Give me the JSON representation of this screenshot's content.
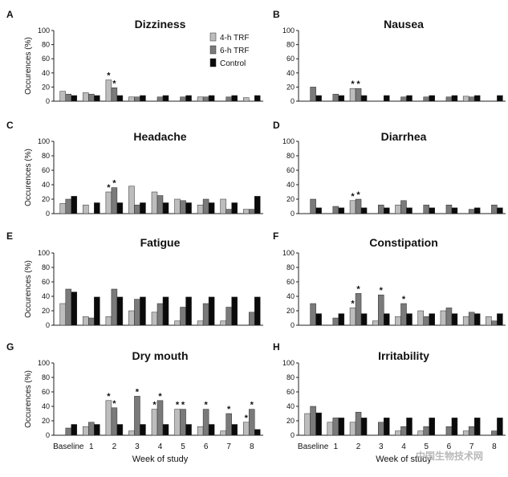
{
  "watermark": "中国生物技术网",
  "legend": [
    {
      "name": "4-h TRF",
      "color": "#bdbdbd"
    },
    {
      "name": "6-h TRF",
      "color": "#7a7a7a"
    },
    {
      "name": "Control",
      "color": "#0a0a0a"
    }
  ],
  "chart_data": [
    {
      "letter": "A",
      "title": "Dizziness",
      "type": "bar",
      "ylabel": "Occurences (%)",
      "ylim": [
        0,
        100
      ],
      "yticks": [
        0,
        20,
        40,
        60,
        80,
        100
      ],
      "categories": [
        "Baseline",
        "1",
        "2",
        "3",
        "4",
        "5",
        "6",
        "7",
        "8"
      ],
      "xlabel": "",
      "show_x_labels": false,
      "show_legend": true,
      "series": [
        {
          "name": "4-h TRF",
          "values": [
            14,
            12,
            30,
            6,
            0,
            0,
            6,
            0,
            5
          ],
          "stars": [
            false,
            false,
            true,
            false,
            false,
            false,
            false,
            false,
            false
          ]
        },
        {
          "name": "6-h TRF",
          "values": [
            10,
            10,
            19,
            6,
            6,
            6,
            6,
            6,
            0
          ],
          "stars": [
            false,
            false,
            true,
            false,
            false,
            false,
            false,
            false,
            false
          ]
        },
        {
          "name": "Control",
          "values": [
            8,
            8,
            8,
            8,
            8,
            8,
            8,
            8,
            8
          ],
          "stars": [
            false,
            false,
            false,
            false,
            false,
            false,
            false,
            false,
            false
          ]
        }
      ]
    },
    {
      "letter": "B",
      "title": "Nausea",
      "type": "bar",
      "ylabel": "",
      "ylim": [
        0,
        100
      ],
      "yticks": [
        0,
        20,
        40,
        60,
        80,
        100
      ],
      "categories": [
        "Baseline",
        "1",
        "2",
        "3",
        "4",
        "5",
        "6",
        "7",
        "8"
      ],
      "xlabel": "",
      "show_x_labels": false,
      "show_legend": false,
      "series": [
        {
          "name": "4-h TRF",
          "values": [
            0,
            0,
            18,
            0,
            0,
            0,
            0,
            7,
            0
          ],
          "stars": [
            false,
            false,
            true,
            false,
            false,
            false,
            false,
            false,
            false
          ]
        },
        {
          "name": "6-h TRF",
          "values": [
            20,
            10,
            18,
            0,
            6,
            6,
            6,
            6,
            0
          ],
          "stars": [
            false,
            false,
            true,
            false,
            false,
            false,
            false,
            false,
            false
          ]
        },
        {
          "name": "Control",
          "values": [
            8,
            8,
            8,
            8,
            8,
            8,
            8,
            8,
            8
          ],
          "stars": [
            false,
            false,
            false,
            false,
            false,
            false,
            false,
            false,
            false
          ]
        }
      ]
    },
    {
      "letter": "C",
      "title": "Headache",
      "type": "bar",
      "ylabel": "Occurences (%)",
      "ylim": [
        0,
        100
      ],
      "yticks": [
        0,
        20,
        40,
        60,
        80,
        100
      ],
      "categories": [
        "Baseline",
        "1",
        "2",
        "3",
        "4",
        "5",
        "6",
        "7",
        "8"
      ],
      "xlabel": "",
      "show_x_labels": false,
      "show_legend": false,
      "series": [
        {
          "name": "4-h TRF",
          "values": [
            14,
            12,
            30,
            38,
            30,
            20,
            12,
            20,
            6
          ],
          "stars": [
            false,
            false,
            true,
            false,
            false,
            false,
            false,
            false,
            false
          ]
        },
        {
          "name": "6-h TRF",
          "values": [
            20,
            0,
            36,
            12,
            25,
            18,
            20,
            6,
            6
          ],
          "stars": [
            false,
            false,
            true,
            false,
            false,
            false,
            false,
            false,
            false
          ]
        },
        {
          "name": "Control",
          "values": [
            24,
            15,
            15,
            15,
            15,
            15,
            15,
            15,
            24
          ],
          "stars": [
            false,
            false,
            false,
            false,
            false,
            false,
            false,
            false,
            false
          ]
        }
      ]
    },
    {
      "letter": "D",
      "title": "Diarrhea",
      "type": "bar",
      "ylabel": "",
      "ylim": [
        0,
        100
      ],
      "yticks": [
        0,
        20,
        40,
        60,
        80,
        100
      ],
      "categories": [
        "Baseline",
        "1",
        "2",
        "3",
        "4",
        "5",
        "6",
        "7",
        "8"
      ],
      "xlabel": "",
      "show_x_labels": false,
      "show_legend": false,
      "series": [
        {
          "name": "4-h TRF",
          "values": [
            0,
            0,
            18,
            0,
            12,
            0,
            0,
            0,
            0
          ],
          "stars": [
            false,
            false,
            true,
            false,
            false,
            false,
            false,
            false,
            false
          ]
        },
        {
          "name": "6-h TRF",
          "values": [
            20,
            10,
            20,
            12,
            18,
            12,
            12,
            6,
            12
          ],
          "stars": [
            false,
            false,
            true,
            false,
            false,
            false,
            false,
            false,
            false
          ]
        },
        {
          "name": "Control",
          "values": [
            8,
            8,
            8,
            8,
            8,
            8,
            8,
            8,
            8
          ],
          "stars": [
            false,
            false,
            false,
            false,
            false,
            false,
            false,
            false,
            false
          ]
        }
      ]
    },
    {
      "letter": "E",
      "title": "Fatigue",
      "type": "bar",
      "ylabel": "Occurences (%)",
      "ylim": [
        0,
        100
      ],
      "yticks": [
        0,
        20,
        40,
        60,
        80,
        100
      ],
      "categories": [
        "Baseline",
        "1",
        "2",
        "3",
        "4",
        "5",
        "6",
        "7",
        "8"
      ],
      "xlabel": "",
      "show_x_labels": false,
      "show_legend": false,
      "series": [
        {
          "name": "4-h TRF",
          "values": [
            30,
            12,
            12,
            20,
            18,
            6,
            6,
            6,
            0
          ],
          "stars": [
            false,
            false,
            false,
            false,
            false,
            false,
            false,
            false,
            false
          ]
        },
        {
          "name": "6-h TRF",
          "values": [
            50,
            10,
            50,
            36,
            30,
            25,
            30,
            25,
            18
          ],
          "stars": [
            false,
            false,
            false,
            false,
            false,
            false,
            false,
            false,
            false
          ]
        },
        {
          "name": "Control",
          "values": [
            46,
            39,
            39,
            39,
            39,
            39,
            39,
            39,
            39
          ],
          "stars": [
            false,
            false,
            false,
            false,
            false,
            false,
            false,
            false,
            false
          ]
        }
      ]
    },
    {
      "letter": "F",
      "title": "Constipation",
      "type": "bar",
      "ylabel": "",
      "ylim": [
        0,
        100
      ],
      "yticks": [
        0,
        20,
        40,
        60,
        80,
        100
      ],
      "categories": [
        "Baseline",
        "1",
        "2",
        "3",
        "4",
        "5",
        "6",
        "7",
        "8"
      ],
      "xlabel": "",
      "show_x_labels": false,
      "show_legend": false,
      "series": [
        {
          "name": "4-h TRF",
          "values": [
            0,
            0,
            24,
            6,
            12,
            20,
            20,
            12,
            12
          ],
          "stars": [
            false,
            false,
            true,
            false,
            false,
            false,
            false,
            false,
            false
          ]
        },
        {
          "name": "6-h TRF",
          "values": [
            30,
            10,
            44,
            42,
            30,
            12,
            24,
            18,
            6
          ],
          "stars": [
            false,
            false,
            true,
            true,
            true,
            false,
            false,
            false,
            false
          ]
        },
        {
          "name": "Control",
          "values": [
            16,
            16,
            16,
            16,
            16,
            16,
            16,
            16,
            16
          ],
          "stars": [
            false,
            false,
            false,
            false,
            false,
            false,
            false,
            false,
            false
          ]
        }
      ]
    },
    {
      "letter": "G",
      "title": "Dry mouth",
      "type": "bar",
      "ylabel": "Occurences (%)",
      "ylim": [
        0,
        100
      ],
      "yticks": [
        0,
        20,
        40,
        60,
        80,
        100
      ],
      "categories": [
        "Baseline",
        "1",
        "2",
        "3",
        "4",
        "5",
        "6",
        "7",
        "8"
      ],
      "xlabel": "Week of study",
      "show_x_labels": true,
      "show_legend": false,
      "series": [
        {
          "name": "4-h TRF",
          "values": [
            0,
            12,
            48,
            6,
            36,
            36,
            12,
            6,
            18
          ],
          "stars": [
            false,
            false,
            true,
            false,
            true,
            true,
            false,
            false,
            true
          ]
        },
        {
          "name": "6-h TRF",
          "values": [
            10,
            18,
            38,
            54,
            48,
            36,
            36,
            30,
            36
          ],
          "stars": [
            false,
            false,
            true,
            true,
            true,
            true,
            true,
            true,
            true
          ]
        },
        {
          "name": "Control",
          "values": [
            15,
            15,
            15,
            15,
            15,
            15,
            15,
            15,
            8
          ],
          "stars": [
            false,
            false,
            false,
            false,
            false,
            false,
            false,
            false,
            false
          ]
        }
      ]
    },
    {
      "letter": "H",
      "title": "Irritability",
      "type": "bar",
      "ylabel": "",
      "ylim": [
        0,
        100
      ],
      "yticks": [
        0,
        20,
        40,
        60,
        80,
        100
      ],
      "categories": [
        "Baseline",
        "1",
        "2",
        "3",
        "4",
        "5",
        "6",
        "7",
        "8"
      ],
      "xlabel": "Week of study",
      "show_x_labels": true,
      "show_legend": false,
      "series": [
        {
          "name": "4-h TRF",
          "values": [
            30,
            18,
            18,
            0,
            6,
            6,
            0,
            6,
            0
          ],
          "stars": [
            false,
            false,
            false,
            false,
            false,
            false,
            false,
            false,
            false
          ]
        },
        {
          "name": "6-h TRF",
          "values": [
            40,
            24,
            32,
            18,
            12,
            12,
            12,
            12,
            6
          ],
          "stars": [
            false,
            false,
            false,
            false,
            false,
            false,
            false,
            false,
            false
          ]
        },
        {
          "name": "Control",
          "values": [
            31,
            24,
            24,
            24,
            24,
            24,
            24,
            24,
            24
          ],
          "stars": [
            false,
            false,
            false,
            false,
            false,
            false,
            false,
            false,
            false
          ]
        }
      ]
    }
  ]
}
